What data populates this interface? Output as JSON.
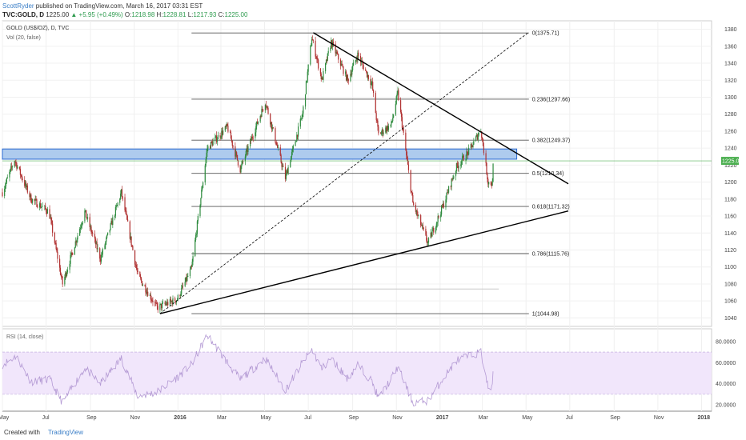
{
  "header": {
    "author": "ScottRyder",
    "published": " published on TradingView.com, March 16, 2017 03:31 EST",
    "symbol": "TVC:GOLD, D",
    "price": "1225.00",
    "change": "▲ +5.95 (+0.49%)",
    "ohlc_o_label": "O:",
    "ohlc_o": "1218.98",
    "ohlc_h_label": "H:",
    "ohlc_h": "1228.81",
    "ohlc_l_label": "L:",
    "ohlc_l": "1217.93",
    "ohlc_c_label": "C:",
    "ohlc_c": "1225.00"
  },
  "footer": {
    "created_with": "Created with",
    "brand": "TradingView"
  },
  "colors": {
    "up": "#2e8b3e",
    "down": "#b03030",
    "fib_line": "#555555",
    "trend_line": "#000000",
    "zone_fill": "#aecbee",
    "zone_stroke": "#2a6ad1",
    "rsi_line": "#b49ad4",
    "rsi_band": "#f1e6fb",
    "price_tag": "#4caf50"
  },
  "chart_data": [
    {
      "type": "candlestick",
      "title": "GOLD (US$/OZ), D, TVC",
      "indicator_label": "Vol (20, false)",
      "x_ticks": [
        "May",
        "Jul",
        "Sep",
        "Nov",
        "2016",
        "Mar",
        "May",
        "Jul",
        "Sep",
        "Nov",
        "2017",
        "Mar",
        "May",
        "Jul",
        "Sep",
        "Nov",
        "2018"
      ],
      "y_ticks": [
        1040,
        1060,
        1080,
        1100,
        1120,
        1140,
        1160,
        1180,
        1200,
        1220,
        1240,
        1260,
        1280,
        1300,
        1320,
        1340,
        1360,
        1380
      ],
      "ylim": [
        1030,
        1390
      ],
      "xlim": [
        "2015-05-01",
        "2018-01-15"
      ],
      "last_price": "1225.00",
      "series": [
        {
          "name": "GOLD",
          "anchors": [
            [
              "2015-05-01",
              1188
            ],
            [
              "2015-05-18",
              1226
            ],
            [
              "2015-06-10",
              1180
            ],
            [
              "2015-07-05",
              1165
            ],
            [
              "2015-07-24",
              1080
            ],
            [
              "2015-08-24",
              1165
            ],
            [
              "2015-09-15",
              1110
            ],
            [
              "2015-10-14",
              1188
            ],
            [
              "2015-11-06",
              1090
            ],
            [
              "2015-12-03",
              1052
            ],
            [
              "2015-12-31",
              1062
            ],
            [
              "2016-01-20",
              1098
            ],
            [
              "2016-02-11",
              1240
            ],
            [
              "2016-03-10",
              1265
            ],
            [
              "2016-03-28",
              1215
            ],
            [
              "2016-05-02",
              1295
            ],
            [
              "2016-05-30",
              1205
            ],
            [
              "2016-06-23",
              1280
            ],
            [
              "2016-07-06",
              1370
            ],
            [
              "2016-07-20",
              1320
            ],
            [
              "2016-08-02",
              1365
            ],
            [
              "2016-08-25",
              1320
            ],
            [
              "2016-09-08",
              1350
            ],
            [
              "2016-09-28",
              1315
            ],
            [
              "2016-10-07",
              1256
            ],
            [
              "2016-10-25",
              1268
            ],
            [
              "2016-11-03",
              1305
            ],
            [
              "2016-11-24",
              1175
            ],
            [
              "2016-12-15",
              1128
            ],
            [
              "2017-01-05",
              1172
            ],
            [
              "2017-01-24",
              1218
            ],
            [
              "2017-02-10",
              1236
            ],
            [
              "2017-02-27",
              1262
            ],
            [
              "2017-03-09",
              1200
            ],
            [
              "2017-03-15",
              1198
            ],
            [
              "2017-03-16",
              1225
            ]
          ]
        }
      ],
      "fib_levels": [
        {
          "ratio": "0",
          "value": 1375.71,
          "label": "0(1375.71)"
        },
        {
          "ratio": "0.236",
          "value": 1297.66,
          "label": "0.236(1297.66)"
        },
        {
          "ratio": "0.382",
          "value": 1249.37,
          "label": "0.382(1249.37)"
        },
        {
          "ratio": "0.5",
          "value": 1210.34,
          "label": "0.5(1210.34)"
        },
        {
          "ratio": "0.618",
          "value": 1171.32,
          "label": "0.618(1171.32)"
        },
        {
          "ratio": "0.786",
          "value": 1115.76,
          "label": "0.786(1115.76)"
        },
        {
          "ratio": "1",
          "value": 1044.98,
          "label": "1(1044.98)"
        }
      ],
      "fib_range": {
        "from": "2016-01-20",
        "to": "2016-12-10",
        "low": 1044.98,
        "high": 1375.71
      },
      "support_zone": {
        "from": "2015-05-01",
        "to": "2017-04-18",
        "low": 1227,
        "high": 1239
      },
      "trend_lines": [
        {
          "from": [
            "2016-07-08",
            1376
          ],
          "to": [
            "2017-06-29",
            1198
          ],
          "style": "solid"
        },
        {
          "from": [
            "2015-12-07",
            1045
          ],
          "to": [
            "2017-06-29",
            1166
          ],
          "style": "solid"
        },
        {
          "from": [
            "2015-12-07",
            1045
          ],
          "to": [
            "2017-05-04",
            1376
          ],
          "style": "dashed"
        }
      ],
      "faint_line": {
        "from": "2015-07-22",
        "to": "2017-03-24",
        "value": 1074
      }
    },
    {
      "type": "line",
      "title": "RSI (14, close)",
      "y_ticks": [
        "20.0000",
        "40.0000",
        "60.0000",
        "80.0000"
      ],
      "ylim": [
        14,
        92
      ],
      "band": [
        30,
        70
      ],
      "series": [
        {
          "name": "RSI",
          "anchors": [
            [
              "2015-05-01",
              58
            ],
            [
              "2015-05-20",
              66
            ],
            [
              "2015-06-10",
              42
            ],
            [
              "2015-07-06",
              44
            ],
            [
              "2015-07-24",
              22
            ],
            [
              "2015-08-24",
              55
            ],
            [
              "2015-09-15",
              40
            ],
            [
              "2015-10-14",
              64
            ],
            [
              "2015-11-06",
              28
            ],
            [
              "2015-12-03",
              32
            ],
            [
              "2015-12-31",
              46
            ],
            [
              "2016-01-20",
              58
            ],
            [
              "2016-02-11",
              86
            ],
            [
              "2016-03-10",
              60
            ],
            [
              "2016-03-28",
              44
            ],
            [
              "2016-05-02",
              64
            ],
            [
              "2016-05-30",
              34
            ],
            [
              "2016-06-23",
              60
            ],
            [
              "2016-07-06",
              72
            ],
            [
              "2016-07-20",
              54
            ],
            [
              "2016-08-02",
              64
            ],
            [
              "2016-08-25",
              45
            ],
            [
              "2016-09-08",
              58
            ],
            [
              "2016-09-28",
              42
            ],
            [
              "2016-10-07",
              26
            ],
            [
              "2016-10-25",
              45
            ],
            [
              "2016-11-03",
              56
            ],
            [
              "2016-11-24",
              22
            ],
            [
              "2016-12-15",
              24
            ],
            [
              "2017-01-05",
              45
            ],
            [
              "2017-01-24",
              62
            ],
            [
              "2017-02-10",
              66
            ],
            [
              "2017-02-27",
              70
            ],
            [
              "2017-03-09",
              36
            ],
            [
              "2017-03-15",
              36
            ],
            [
              "2017-03-16",
              52
            ]
          ]
        }
      ]
    }
  ]
}
